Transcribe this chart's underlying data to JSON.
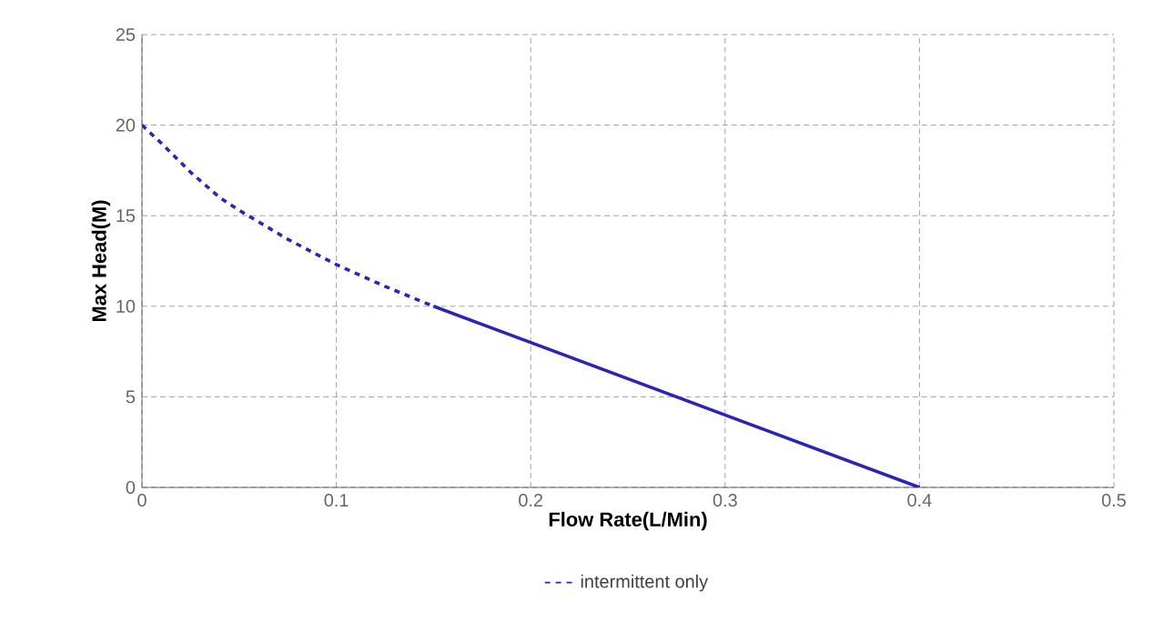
{
  "chart_data": {
    "type": "line",
    "xlabel": "Flow Rate(L/Min)",
    "ylabel": "Max Head(M)",
    "xlim": [
      0,
      0.5
    ],
    "ylim": [
      0,
      25
    ],
    "xticks": [
      0,
      0.1,
      0.2,
      0.3,
      0.4,
      0.5
    ],
    "yticks": [
      0,
      5,
      10,
      15,
      20,
      25
    ],
    "grid": true,
    "legend": "bottom",
    "series": [
      {
        "name": "intermittent only",
        "color": "#2b24b5",
        "line_style": "dashed",
        "x": [
          0,
          0.01,
          0.025,
          0.04,
          0.05,
          0.075,
          0.1,
          0.125,
          0.15
        ],
        "values": [
          20,
          19,
          17.4,
          16,
          15.3,
          13.7,
          12.3,
          11.1,
          10
        ]
      },
      {
        "color": "#2b24b5",
        "line_style": "solid",
        "x": [
          0.15,
          0.2,
          0.3,
          0.4
        ],
        "values": [
          10,
          8,
          4,
          0
        ]
      }
    ]
  }
}
